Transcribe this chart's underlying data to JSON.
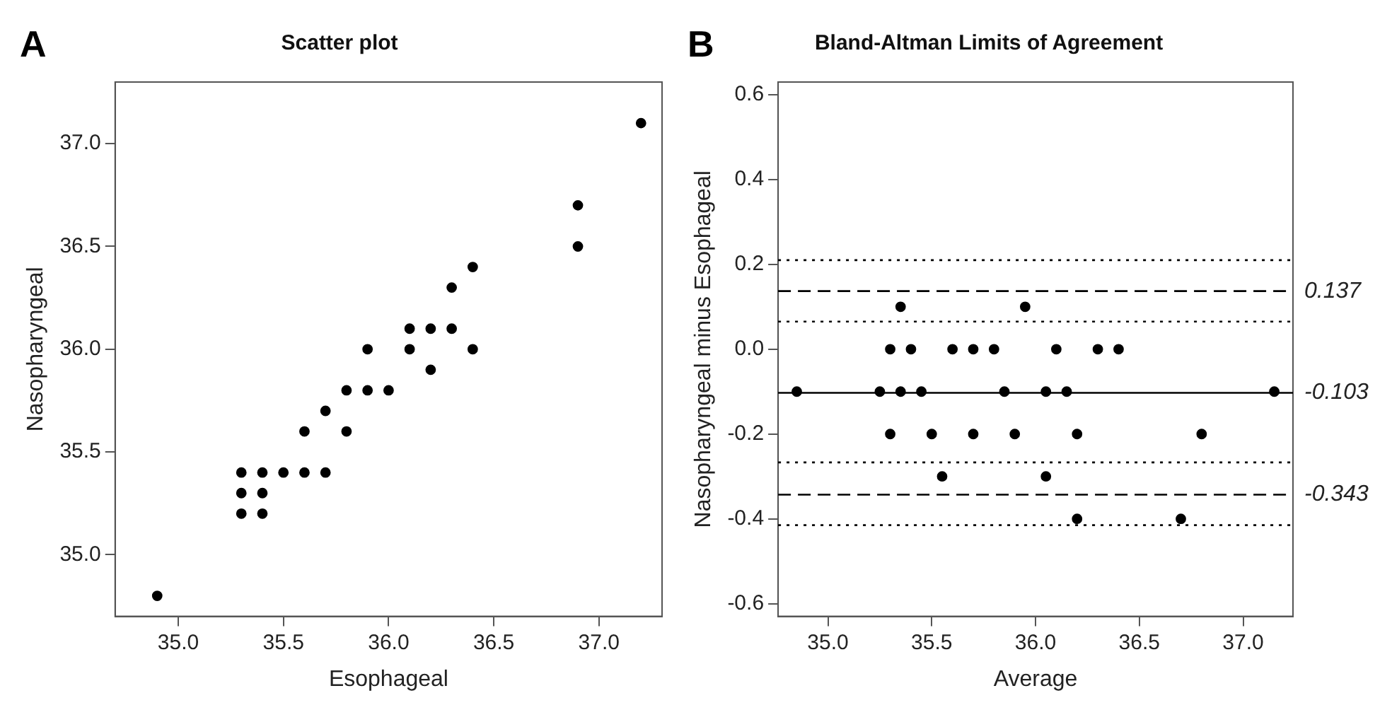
{
  "chart_data": [
    {
      "type": "scatter",
      "title": "Scatter plot",
      "xlabel": "Esophageal",
      "ylabel": "Nasopharyngeal",
      "annotations": [
        "A"
      ],
      "color": "#000000",
      "marker": "circle",
      "x": [
        34.9,
        35.3,
        35.3,
        35.3,
        35.4,
        35.4,
        35.4,
        35.5,
        35.6,
        35.6,
        35.7,
        35.7,
        35.8,
        35.8,
        35.9,
        35.9,
        36.0,
        36.1,
        36.1,
        36.2,
        36.2,
        36.3,
        36.3,
        36.4,
        36.4,
        36.9,
        36.9,
        37.2
      ],
      "values": [
        34.8,
        35.4,
        35.3,
        35.2,
        35.4,
        35.3,
        35.2,
        35.4,
        35.4,
        35.6,
        35.4,
        35.7,
        35.6,
        35.8,
        35.8,
        36.0,
        35.8,
        36.0,
        36.1,
        36.1,
        35.9,
        36.1,
        36.3,
        36.0,
        36.4,
        36.5,
        36.7,
        37.1
      ],
      "xlim": [
        34.7,
        37.3
      ],
      "ylim": [
        34.7,
        37.3
      ],
      "xticks": [
        {
          "value": 35,
          "label": "35.0"
        },
        {
          "value": 35.5,
          "label": "35.5"
        },
        {
          "value": 36,
          "label": "36.0"
        },
        {
          "value": 36.5,
          "label": "36.5"
        },
        {
          "value": 37,
          "label": "37.0"
        }
      ],
      "yticks": [
        {
          "value": 35,
          "label": "35.0"
        },
        {
          "value": 35.5,
          "label": "35.5"
        },
        {
          "value": 36,
          "label": "36.0"
        },
        {
          "value": 36.5,
          "label": "36.5"
        },
        {
          "value": 37,
          "label": "37.0"
        }
      ]
    },
    {
      "type": "scatter",
      "title": "Bland-Altman Limits of Agreement",
      "xlabel": "Average",
      "ylabel": "Nasopharyngeal minus Esophageal",
      "annotations": [
        "B"
      ],
      "color": "#000000",
      "marker": "circle",
      "x": [
        34.85,
        35.25,
        35.3,
        35.3,
        35.35,
        35.35,
        35.4,
        35.45,
        35.5,
        35.55,
        35.6,
        35.7,
        35.7,
        35.8,
        35.85,
        35.9,
        35.95,
        36.05,
        36.05,
        36.1,
        36.15,
        36.2,
        36.2,
        36.3,
        36.4,
        36.7,
        36.8,
        37.15
      ],
      "values": [
        -0.1,
        -0.1,
        0,
        -0.2,
        0.1,
        -0.1,
        0,
        -0.1,
        -0.2,
        -0.3,
        0,
        0,
        -0.2,
        0,
        -0.1,
        -0.2,
        0.1,
        -0.1,
        -0.3,
        0,
        -0.1,
        -0.2,
        -0.4,
        0,
        0,
        -0.4,
        -0.2,
        -0.1
      ],
      "xlim": [
        34.76,
        37.24
      ],
      "ylim": [
        -0.63,
        0.63
      ],
      "xticks": [
        {
          "value": 35,
          "label": "35.0"
        },
        {
          "value": 35.5,
          "label": "35.5"
        },
        {
          "value": 36,
          "label": "36.0"
        },
        {
          "value": 36.5,
          "label": "36.5"
        },
        {
          "value": 37,
          "label": "37.0"
        }
      ],
      "yticks": [
        {
          "value": -0.6,
          "label": "-0.6"
        },
        {
          "value": -0.4,
          "label": "-0.4"
        },
        {
          "value": -0.2,
          "label": "-0.2"
        },
        {
          "value": 0,
          "label": "0.0"
        },
        {
          "value": 0.2,
          "label": "0.2"
        },
        {
          "value": 0.4,
          "label": "0.4"
        },
        {
          "value": 0.6,
          "label": "0.6"
        }
      ],
      "ref_lines": [
        {
          "axis": "y",
          "value": 0.21,
          "color": "#000000",
          "line_style": "dotted"
        },
        {
          "axis": "y",
          "value": 0.137,
          "label": "0.137",
          "color": "#000000",
          "line_style": "dashed"
        },
        {
          "axis": "y",
          "value": 0.065,
          "color": "#000000",
          "line_style": "dotted"
        },
        {
          "axis": "y",
          "value": -0.103,
          "label": "-0.103",
          "color": "#000000",
          "line_style": "solid"
        },
        {
          "axis": "y",
          "value": -0.267,
          "color": "#000000",
          "line_style": "dotted"
        },
        {
          "axis": "y",
          "value": -0.343,
          "label": "-0.343",
          "color": "#000000",
          "line_style": "dashed"
        },
        {
          "axis": "y",
          "value": -0.415,
          "color": "#000000",
          "line_style": "dotted"
        }
      ]
    }
  ]
}
